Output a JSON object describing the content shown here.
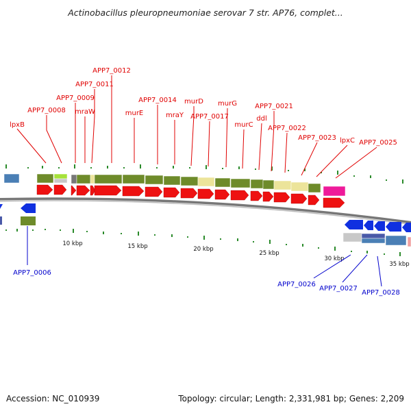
{
  "title": "Actinobacillus pleuropneumoniae serovar 7 str. AP76, complet...",
  "accession": "Accession: NC_010939",
  "stats": "Topology: circular; Length: 2,331,981 bp; Genes: 2,209",
  "colors": {
    "cds_red": "#ee1111",
    "olive": "#6e8b2a",
    "khaki": "#ece49a",
    "lime": "#a6e23a",
    "blue": "#1030e0",
    "steel": "#4a7fb5",
    "magenta": "#ee1a9a",
    "grey": "#c8c8c8",
    "ruler": "#777777",
    "tick_green": "#2a8a2a"
  },
  "scale_labels": [
    "10 kbp",
    "15 kbp",
    "20 kbp",
    "25 kbp",
    "30 kbp",
    "35 kbp"
  ],
  "labels_top": [
    "lpxB",
    "APP7_0008",
    "APP7_0009",
    "mraW",
    "APP7_0011",
    "APP7_0012",
    "murE",
    "APP7_0014",
    "mraY",
    "murD",
    "APP7_0017",
    "murG",
    "murC",
    "ddl",
    "APP7_0021",
    "APP7_0022",
    "APP7_0023",
    "lpxC",
    "APP7_0025"
  ],
  "labels_bottom": [
    "APP7_0006",
    "APP7_0026",
    "APP7_0027",
    "APP7_0028"
  ]
}
